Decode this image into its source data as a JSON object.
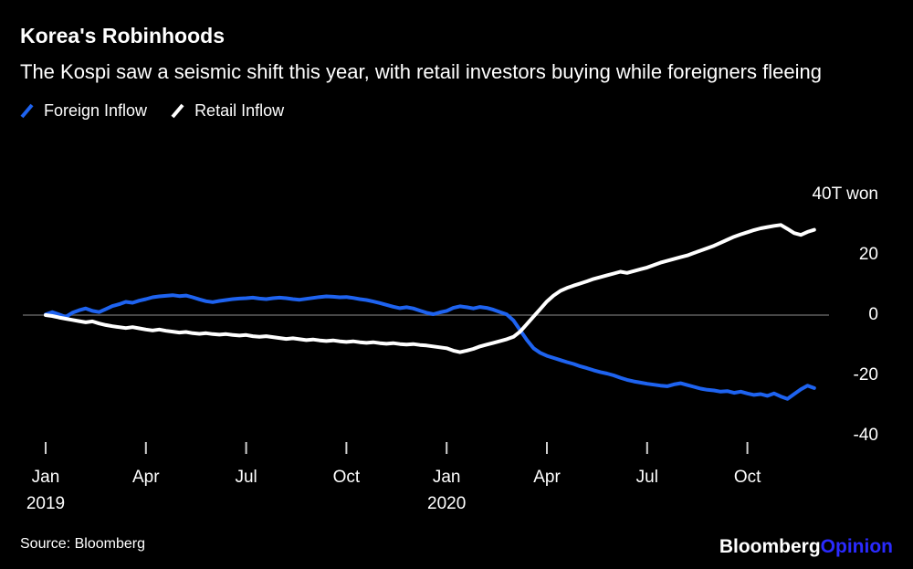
{
  "title": "Korea's Robinhoods",
  "subtitle": "The Kospi saw a seismic shift this year, with retail investors buying while foreigners fleeing",
  "legend": [
    {
      "label": "Foreign Inflow",
      "color": "#1e63f0"
    },
    {
      "label": "Retail Inflow",
      "color": "#ffffff"
    }
  ],
  "source": "Source: Bloomberg",
  "logo": {
    "bloomberg": "Bloomberg",
    "opinion": "Opinion",
    "opinion_color": "#2a2aff"
  },
  "colors": {
    "background": "#000000",
    "foreign_line": "#1e63f0",
    "retail_line": "#ffffff",
    "zero_line": "#5f5f5f",
    "tick_mark": "#d0d0d0",
    "text": "#ffffff"
  },
  "chart_data": {
    "type": "line",
    "title": "Korea's Robinhoods",
    "subtitle": "The Kospi saw a seismic shift this year, with retail investors buying while foreigners fleeing",
    "unit": "T won",
    "grid": "off",
    "legend_position": "top-left",
    "y_axis": {
      "range": [
        -45,
        45
      ],
      "ticks": [
        {
          "label": "40T won",
          "value": 40
        },
        {
          "label": "20",
          "value": 20
        },
        {
          "label": "0",
          "value": 0
        },
        {
          "label": "-20",
          "value": -20
        },
        {
          "label": "-40",
          "value": -40
        }
      ]
    },
    "x_axis": {
      "range_months": [
        0,
        23
      ],
      "ticks": [
        {
          "label": "Jan",
          "sublabel": "2019",
          "month": 0
        },
        {
          "label": "Apr",
          "month": 3
        },
        {
          "label": "Jul",
          "month": 6
        },
        {
          "label": "Oct",
          "month": 9
        },
        {
          "label": "Jan",
          "sublabel": "2020",
          "month": 12
        },
        {
          "label": "Apr",
          "month": 15
        },
        {
          "label": "Jul",
          "month": 18
        },
        {
          "label": "Oct",
          "month": 21
        }
      ]
    },
    "series": [
      {
        "name": "Foreign Inflow",
        "color": "#1e63f0",
        "points": [
          [
            0,
            0.2
          ],
          [
            0.2,
            1
          ],
          [
            0.4,
            0.2
          ],
          [
            0.6,
            -0.6
          ],
          [
            0.8,
            0.8
          ],
          [
            1,
            1.6
          ],
          [
            1.2,
            2.2
          ],
          [
            1.4,
            1.4
          ],
          [
            1.6,
            1
          ],
          [
            1.8,
            2
          ],
          [
            2,
            3
          ],
          [
            2.2,
            3.6
          ],
          [
            2.4,
            4.4
          ],
          [
            2.6,
            4.1
          ],
          [
            2.8,
            4.8
          ],
          [
            3,
            5.3
          ],
          [
            3.2,
            5.9
          ],
          [
            3.4,
            6.2
          ],
          [
            3.6,
            6.4
          ],
          [
            3.8,
            6.6
          ],
          [
            4,
            6.3
          ],
          [
            4.2,
            6.5
          ],
          [
            4.4,
            5.9
          ],
          [
            4.6,
            5.2
          ],
          [
            4.8,
            4.6
          ],
          [
            5,
            4.3
          ],
          [
            5.2,
            4.7
          ],
          [
            5.4,
            5
          ],
          [
            5.6,
            5.3
          ],
          [
            5.8,
            5.5
          ],
          [
            6,
            5.6
          ],
          [
            6.2,
            5.8
          ],
          [
            6.4,
            5.5
          ],
          [
            6.6,
            5.3
          ],
          [
            6.8,
            5.6
          ],
          [
            7,
            5.8
          ],
          [
            7.2,
            5.6
          ],
          [
            7.4,
            5.3
          ],
          [
            7.6,
            5.1
          ],
          [
            7.8,
            5.4
          ],
          [
            8,
            5.7
          ],
          [
            8.2,
            6
          ],
          [
            8.4,
            6.2
          ],
          [
            8.6,
            6.1
          ],
          [
            8.8,
            5.9
          ],
          [
            9,
            6
          ],
          [
            9.2,
            5.7
          ],
          [
            9.4,
            5.3
          ],
          [
            9.6,
            5
          ],
          [
            9.8,
            4.5
          ],
          [
            10,
            4
          ],
          [
            10.2,
            3.4
          ],
          [
            10.4,
            2.8
          ],
          [
            10.6,
            2.3
          ],
          [
            10.8,
            2.6
          ],
          [
            11,
            2.2
          ],
          [
            11.2,
            1.5
          ],
          [
            11.4,
            0.8
          ],
          [
            11.6,
            0.3
          ],
          [
            11.8,
            0.9
          ],
          [
            12,
            1.4
          ],
          [
            12.2,
            2.4
          ],
          [
            12.4,
            2.9
          ],
          [
            12.6,
            2.6
          ],
          [
            12.8,
            2.2
          ],
          [
            13,
            2.7
          ],
          [
            13.2,
            2.4
          ],
          [
            13.4,
            1.8
          ],
          [
            13.6,
            1
          ],
          [
            13.8,
            0.2
          ],
          [
            14,
            -1.8
          ],
          [
            14.2,
            -5
          ],
          [
            14.4,
            -8.2
          ],
          [
            14.6,
            -11
          ],
          [
            14.8,
            -12.5
          ],
          [
            15,
            -13.5
          ],
          [
            15.2,
            -14.2
          ],
          [
            15.4,
            -14.9
          ],
          [
            15.6,
            -15.6
          ],
          [
            15.8,
            -16.2
          ],
          [
            16,
            -17
          ],
          [
            16.2,
            -17.6
          ],
          [
            16.4,
            -18.3
          ],
          [
            16.6,
            -18.9
          ],
          [
            16.8,
            -19.4
          ],
          [
            17,
            -20
          ],
          [
            17.2,
            -20.8
          ],
          [
            17.4,
            -21.5
          ],
          [
            17.6,
            -22
          ],
          [
            17.8,
            -22.4
          ],
          [
            18,
            -22.8
          ],
          [
            18.2,
            -23.1
          ],
          [
            18.4,
            -23.4
          ],
          [
            18.6,
            -23.6
          ],
          [
            18.8,
            -23
          ],
          [
            19,
            -22.6
          ],
          [
            19.2,
            -23.2
          ],
          [
            19.4,
            -23.8
          ],
          [
            19.6,
            -24.4
          ],
          [
            19.8,
            -24.8
          ],
          [
            20,
            -25
          ],
          [
            20.2,
            -25.4
          ],
          [
            20.4,
            -25.2
          ],
          [
            20.6,
            -25.8
          ],
          [
            20.8,
            -25.4
          ],
          [
            21,
            -26
          ],
          [
            21.2,
            -26.5
          ],
          [
            21.4,
            -26.2
          ],
          [
            21.6,
            -26.8
          ],
          [
            21.8,
            -26
          ],
          [
            22,
            -27
          ],
          [
            22.2,
            -27.8
          ],
          [
            22.4,
            -26.2
          ],
          [
            22.6,
            -24.6
          ],
          [
            22.8,
            -23.4
          ],
          [
            23,
            -24.2
          ]
        ]
      },
      {
        "name": "Retail Inflow",
        "color": "#ffffff",
        "points": [
          [
            0,
            0
          ],
          [
            0.2,
            -0.3
          ],
          [
            0.4,
            -0.8
          ],
          [
            0.6,
            -1.2
          ],
          [
            0.8,
            -1.6
          ],
          [
            1,
            -2
          ],
          [
            1.2,
            -2.4
          ],
          [
            1.4,
            -2.1
          ],
          [
            1.6,
            -2.8
          ],
          [
            1.8,
            -3.3
          ],
          [
            2,
            -3.7
          ],
          [
            2.2,
            -4
          ],
          [
            2.4,
            -4.3
          ],
          [
            2.6,
            -4
          ],
          [
            2.8,
            -4.4
          ],
          [
            3,
            -4.8
          ],
          [
            3.2,
            -5.1
          ],
          [
            3.4,
            -4.8
          ],
          [
            3.6,
            -5.2
          ],
          [
            3.8,
            -5.5
          ],
          [
            4,
            -5.8
          ],
          [
            4.2,
            -5.6
          ],
          [
            4.4,
            -6
          ],
          [
            4.6,
            -6.2
          ],
          [
            4.8,
            -6
          ],
          [
            5,
            -6.3
          ],
          [
            5.2,
            -6.5
          ],
          [
            5.4,
            -6.3
          ],
          [
            5.6,
            -6.6
          ],
          [
            5.8,
            -6.8
          ],
          [
            6,
            -6.6
          ],
          [
            6.2,
            -7
          ],
          [
            6.4,
            -7.2
          ],
          [
            6.6,
            -7
          ],
          [
            6.8,
            -7.3
          ],
          [
            7,
            -7.6
          ],
          [
            7.2,
            -7.9
          ],
          [
            7.4,
            -7.7
          ],
          [
            7.6,
            -8
          ],
          [
            7.8,
            -8.3
          ],
          [
            8,
            -8.1
          ],
          [
            8.2,
            -8.4
          ],
          [
            8.4,
            -8.6
          ],
          [
            8.6,
            -8.4
          ],
          [
            8.8,
            -8.7
          ],
          [
            9,
            -8.9
          ],
          [
            9.2,
            -8.7
          ],
          [
            9.4,
            -9
          ],
          [
            9.6,
            -9.2
          ],
          [
            9.8,
            -9
          ],
          [
            10,
            -9.3
          ],
          [
            10.2,
            -9.5
          ],
          [
            10.4,
            -9.3
          ],
          [
            10.6,
            -9.6
          ],
          [
            10.8,
            -9.8
          ],
          [
            11,
            -9.6
          ],
          [
            11.2,
            -9.9
          ],
          [
            11.4,
            -10.1
          ],
          [
            11.6,
            -10.4
          ],
          [
            11.8,
            -10.7
          ],
          [
            12,
            -11
          ],
          [
            12.2,
            -11.8
          ],
          [
            12.4,
            -12.3
          ],
          [
            12.6,
            -11.8
          ],
          [
            12.8,
            -11.2
          ],
          [
            13,
            -10.4
          ],
          [
            13.2,
            -9.8
          ],
          [
            13.4,
            -9.2
          ],
          [
            13.6,
            -8.6
          ],
          [
            13.8,
            -8
          ],
          [
            14,
            -7.2
          ],
          [
            14.2,
            -5.5
          ],
          [
            14.4,
            -3
          ],
          [
            14.6,
            -0.5
          ],
          [
            14.8,
            2
          ],
          [
            15,
            4.5
          ],
          [
            15.2,
            6.5
          ],
          [
            15.4,
            8
          ],
          [
            15.6,
            9
          ],
          [
            15.8,
            9.8
          ],
          [
            16,
            10.5
          ],
          [
            16.2,
            11.2
          ],
          [
            16.4,
            12
          ],
          [
            16.6,
            12.6
          ],
          [
            16.8,
            13.2
          ],
          [
            17,
            13.8
          ],
          [
            17.2,
            14.4
          ],
          [
            17.4,
            14
          ],
          [
            17.6,
            14.6
          ],
          [
            17.8,
            15.2
          ],
          [
            18,
            15.8
          ],
          [
            18.2,
            16.6
          ],
          [
            18.4,
            17.4
          ],
          [
            18.6,
            18
          ],
          [
            18.8,
            18.6
          ],
          [
            19,
            19.2
          ],
          [
            19.2,
            19.8
          ],
          [
            19.4,
            20.6
          ],
          [
            19.6,
            21.4
          ],
          [
            19.8,
            22.2
          ],
          [
            20,
            23
          ],
          [
            20.2,
            24
          ],
          [
            20.4,
            25
          ],
          [
            20.6,
            26
          ],
          [
            20.8,
            26.8
          ],
          [
            21,
            27.5
          ],
          [
            21.2,
            28.2
          ],
          [
            21.4,
            28.8
          ],
          [
            21.6,
            29.2
          ],
          [
            21.8,
            29.6
          ],
          [
            22,
            29.9
          ],
          [
            22.2,
            28.6
          ],
          [
            22.4,
            27.2
          ],
          [
            22.6,
            26.6
          ],
          [
            22.8,
            27.6
          ],
          [
            23,
            28.3
          ]
        ]
      }
    ]
  }
}
